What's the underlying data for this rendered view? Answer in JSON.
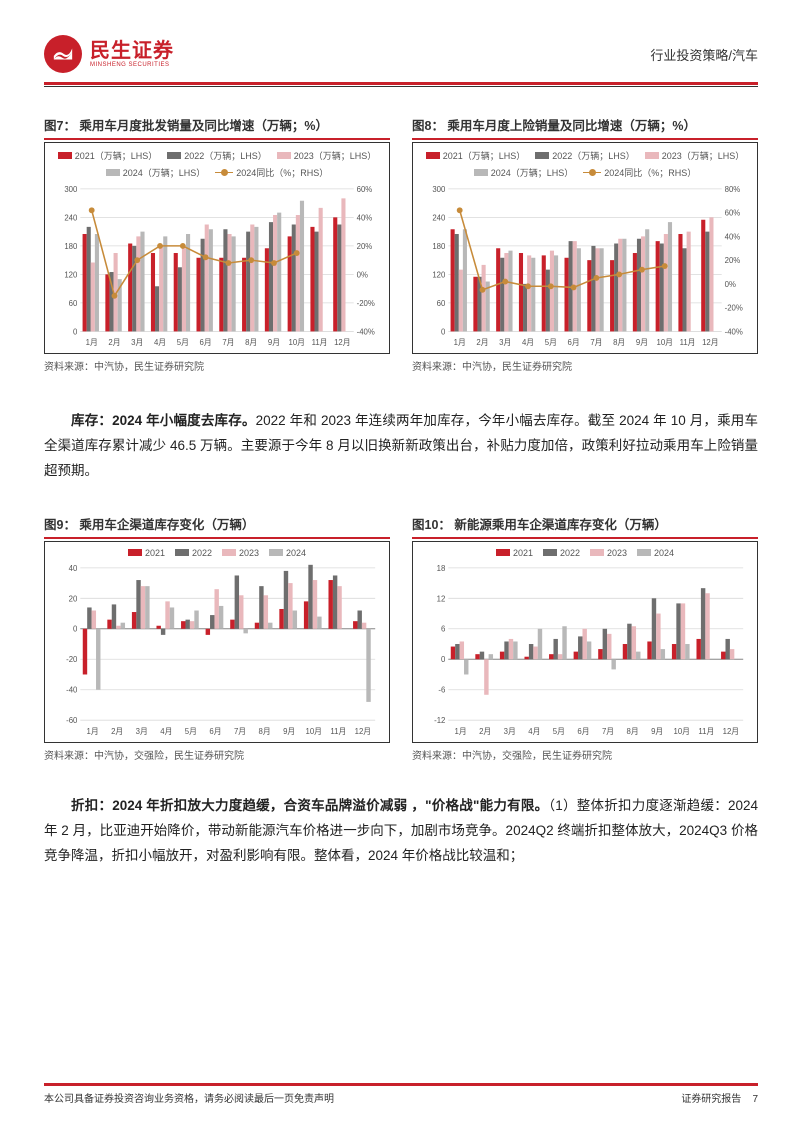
{
  "header": {
    "logo_cn": "民生证券",
    "logo_en": "MINSHENG SECURITIES",
    "right": "行业投资策略/汽车"
  },
  "para1_bold": "库存：2024 年小幅度去库存。",
  "para1": "2022 年和 2023 年连续两年加库存，今年小幅去库存。截至 2024 年 10 月，乘用车全渠道库存累计减少 46.5 万辆。主要源于今年 8 月以旧换新新政策出台，补贴力度加倍，政策利好拉动乘用车上险销量超预期。",
  "para2_bold": "折扣：2024 年折扣放大力度趋缓，合资车品牌溢价减弱 ，\"价格战\"能力有限。",
  "para2": "（1）整体折扣力度逐渐趋缓：2024 年 2 月，比亚迪开始降价，带动新能源汽车价格进一步向下，加剧市场竞争。2024Q2 终端折扣整体放大，2024Q3 价格竞争降温，折扣小幅放开，对盈利影响有限。整体看，2024 年价格战比较温和；",
  "footer": {
    "left": "本公司具备证券投资咨询业务资格，请务必阅读最后一页免责声明",
    "right": "证券研究报告",
    "page": "7"
  },
  "colors": {
    "c2021": "#C8202A",
    "c2022": "#6E6E6E",
    "c2023": "#E9B8BC",
    "c2024": "#B8B8B8",
    "line": "#C78B3A",
    "grid": "#D9D9D9",
    "box": "#333333"
  },
  "chart7": {
    "title": "图7：  乘用车月度批发销量及同比增速（万辆；%）",
    "source": "资料来源：中汽协，民生证券研究院",
    "months": [
      "1月",
      "2月",
      "3月",
      "4月",
      "5月",
      "6月",
      "7月",
      "8月",
      "9月",
      "10月",
      "11月",
      "12月"
    ],
    "legend": [
      "2021（万辆；LHS）",
      "2022（万辆；LHS）",
      "2023（万辆；LHS）",
      "2024（万辆；LHS）",
      "2024同比（%；RHS）"
    ],
    "ylim": [
      0,
      300
    ],
    "ytick": 60,
    "rlim": [
      -40,
      60
    ],
    "rtick": 20,
    "s2021": [
      205,
      120,
      185,
      165,
      165,
      155,
      155,
      155,
      175,
      200,
      220,
      240
    ],
    "s2022": [
      220,
      125,
      180,
      95,
      135,
      195,
      215,
      210,
      230,
      225,
      210,
      225
    ],
    "s2023": [
      145,
      165,
      200,
      180,
      175,
      225,
      205,
      225,
      245,
      245,
      260,
      280
    ],
    "s2024": [
      205,
      110,
      210,
      200,
      205,
      215,
      200,
      220,
      250,
      275,
      0,
      0
    ],
    "line2024": [
      45,
      -15,
      10,
      20,
      20,
      12,
      8,
      10,
      8,
      15
    ]
  },
  "chart8": {
    "title": "图8：  乘用车月度上险销量及同比增速（万辆；%）",
    "source": "资料来源：中汽协，民生证券研究院",
    "months": [
      "1月",
      "2月",
      "3月",
      "4月",
      "5月",
      "6月",
      "7月",
      "8月",
      "9月",
      "10月",
      "11月",
      "12月"
    ],
    "legend": [
      "2021（万辆；LHS）",
      "2022（万辆；LHS）",
      "2023（万辆；LHS）",
      "2024（万辆；LHS）",
      "2024同比（%；RHS）"
    ],
    "ylim": [
      0,
      300
    ],
    "ytick": 60,
    "rlim": [
      -40,
      80
    ],
    "rtick": 20,
    "s2021": [
      215,
      115,
      175,
      165,
      160,
      155,
      150,
      150,
      165,
      190,
      205,
      235
    ],
    "s2022": [
      205,
      115,
      155,
      100,
      130,
      190,
      180,
      185,
      195,
      185,
      175,
      210
    ],
    "s2023": [
      130,
      140,
      165,
      160,
      170,
      190,
      175,
      195,
      200,
      205,
      210,
      240
    ],
    "s2024": [
      215,
      105,
      170,
      155,
      160,
      175,
      175,
      195,
      215,
      230,
      0,
      0
    ],
    "line2024": [
      62,
      -5,
      2,
      -2,
      -2,
      -3,
      5,
      8,
      12,
      15
    ]
  },
  "chart9": {
    "title": "图9：  乘用车企渠道库存变化（万辆）",
    "source": "资料来源：中汽协，交强险，民生证券研究院",
    "months": [
      "1月",
      "2月",
      "3月",
      "4月",
      "5月",
      "6月",
      "7月",
      "8月",
      "9月",
      "10月",
      "11月",
      "12月"
    ],
    "legend": [
      "2021",
      "2022",
      "2023",
      "2024"
    ],
    "ylim": [
      -60,
      40
    ],
    "ytick": 20,
    "s2021": [
      -30,
      6,
      11,
      2,
      5,
      -4,
      6,
      4,
      13,
      18,
      32,
      5
    ],
    "s2022": [
      14,
      16,
      32,
      -4,
      6,
      9,
      35,
      28,
      38,
      42,
      35,
      12
    ],
    "s2023": [
      12,
      2,
      28,
      18,
      5,
      26,
      22,
      22,
      30,
      32,
      28,
      4
    ],
    "s2024": [
      -40,
      4,
      28,
      14,
      12,
      15,
      -3,
      4,
      12,
      8,
      0,
      -48
    ]
  },
  "chart10": {
    "title": "图10：  新能源乘用车企渠道库存变化（万辆）",
    "source": "资料来源：中汽协，交强险，民生证券研究院",
    "months": [
      "1月",
      "2月",
      "3月",
      "4月",
      "5月",
      "6月",
      "7月",
      "8月",
      "9月",
      "10月",
      "11月",
      "12月"
    ],
    "legend": [
      "2021",
      "2022",
      "2023",
      "2024"
    ],
    "ylim": [
      -12,
      18
    ],
    "ytick": 6,
    "s2021": [
      2.5,
      1,
      1.5,
      0.5,
      1,
      1.5,
      2,
      3,
      3.5,
      3,
      4,
      1.5
    ],
    "s2022": [
      3,
      1.5,
      3.5,
      3,
      4,
      4.5,
      6,
      7,
      12,
      11,
      14,
      4
    ],
    "s2023": [
      3.5,
      -7,
      4,
      2.5,
      1,
      6,
      5,
      6.5,
      9,
      11,
      13,
      2
    ],
    "s2024": [
      -3,
      1,
      3.5,
      6,
      6.5,
      3.5,
      -2,
      1.5,
      2,
      3,
      0,
      0
    ]
  }
}
